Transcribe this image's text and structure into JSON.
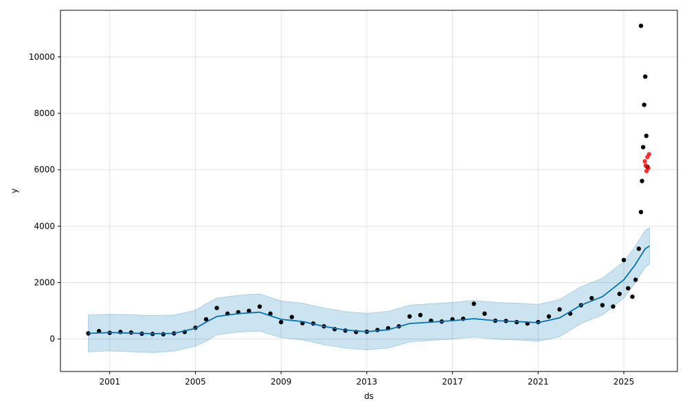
{
  "chart_data": {
    "type": "scatter",
    "title": "",
    "xlabel": "ds",
    "ylabel": "y",
    "xlim": [
      1998.7,
      2027.5
    ],
    "ylim": [
      -1150,
      11650
    ],
    "x_ticks": [
      2001,
      2005,
      2009,
      2013,
      2017,
      2021,
      2025
    ],
    "y_ticks": [
      0,
      2000,
      4000,
      6000,
      8000,
      10000
    ],
    "grid": true,
    "colors": {
      "observed": "#000000",
      "forecast": "#0072B2",
      "uncertainty": "#0072B2",
      "outlier": "#ff0000"
    },
    "series": [
      {
        "kind": "forecast",
        "x": [
          2000.0,
          2001.0,
          2002.0,
          2003.0,
          2004.0,
          2005.0,
          2005.5,
          2006.0,
          2007.0,
          2008.0,
          2009.0,
          2010.0,
          2011.0,
          2012.0,
          2013.0,
          2014.0,
          2015.0,
          2016.0,
          2017.0,
          2018.0,
          2019.0,
          2020.0,
          2021.0,
          2022.0,
          2023.0,
          2024.0,
          2025.0,
          2025.5,
          2026.0,
          2026.2
        ],
        "y": [
          200,
          230,
          210,
          190,
          200,
          380,
          600,
          800,
          900,
          950,
          700,
          620,
          450,
          320,
          260,
          330,
          550,
          600,
          650,
          720,
          650,
          620,
          580,
          750,
          1200,
          1500,
          2100,
          2600,
          3200,
          3300
        ],
        "lower": [
          -450,
          -420,
          -450,
          -480,
          -430,
          -250,
          -80,
          150,
          250,
          280,
          50,
          -30,
          -200,
          -320,
          -380,
          -320,
          -100,
          -50,
          0,
          70,
          0,
          -30,
          -80,
          80,
          550,
          850,
          1450,
          1950,
          2550,
          2650
        ],
        "upper": [
          850,
          880,
          860,
          830,
          850,
          1020,
          1250,
          1450,
          1550,
          1600,
          1350,
          1270,
          1100,
          970,
          910,
          980,
          1200,
          1250,
          1300,
          1370,
          1300,
          1270,
          1230,
          1400,
          1850,
          2150,
          2750,
          3250,
          3850,
          3950
        ]
      },
      {
        "kind": "observed",
        "x": [
          2000.0,
          2000.5,
          2001.0,
          2001.5,
          2002.0,
          2002.5,
          2003.0,
          2003.5,
          2004.0,
          2004.5,
          2005.0,
          2005.5,
          2006.0,
          2006.5,
          2007.0,
          2007.5,
          2008.0,
          2008.5,
          2009.0,
          2009.5,
          2010.0,
          2010.5,
          2011.0,
          2011.5,
          2012.0,
          2012.5,
          2013.0,
          2013.5,
          2014.0,
          2014.5,
          2015.0,
          2015.5,
          2016.0,
          2016.5,
          2017.0,
          2017.5,
          2018.0,
          2018.5,
          2019.0,
          2019.5,
          2020.0,
          2020.5,
          2021.0,
          2021.5,
          2022.0,
          2022.5,
          2023.0,
          2023.5,
          2024.0,
          2024.5,
          2024.8,
          2025.0,
          2025.2,
          2025.4,
          2025.55,
          2025.7,
          2025.8,
          2025.85,
          2025.9,
          2025.95,
          2026.0,
          2026.05,
          2026.1
        ],
        "y": [
          200,
          280,
          220,
          250,
          230,
          190,
          180,
          170,
          200,
          250,
          400,
          700,
          1100,
          900,
          950,
          1000,
          1150,
          900,
          600,
          780,
          560,
          550,
          450,
          350,
          300,
          250,
          260,
          320,
          380,
          450,
          800,
          850,
          650,
          620,
          700,
          720,
          1250,
          900,
          650,
          640,
          600,
          550,
          600,
          800,
          1050,
          900,
          1200,
          1450,
          1200,
          1150,
          1600,
          2800,
          1800,
          1500,
          2100,
          3200,
          4500,
          5600,
          6800,
          8300,
          9300,
          7200,
          6100
        ]
      },
      {
        "kind": "outlier",
        "x": [
          2025.98,
          2026.02,
          2026.06,
          2026.1,
          2026.14,
          2026.18
        ],
        "y": [
          6300,
          6150,
          5950,
          6450,
          6050,
          6550
        ]
      }
    ],
    "annotations": [
      {
        "x": 2025.8,
        "y": 11100,
        "kind": "observed-peak"
      }
    ]
  }
}
